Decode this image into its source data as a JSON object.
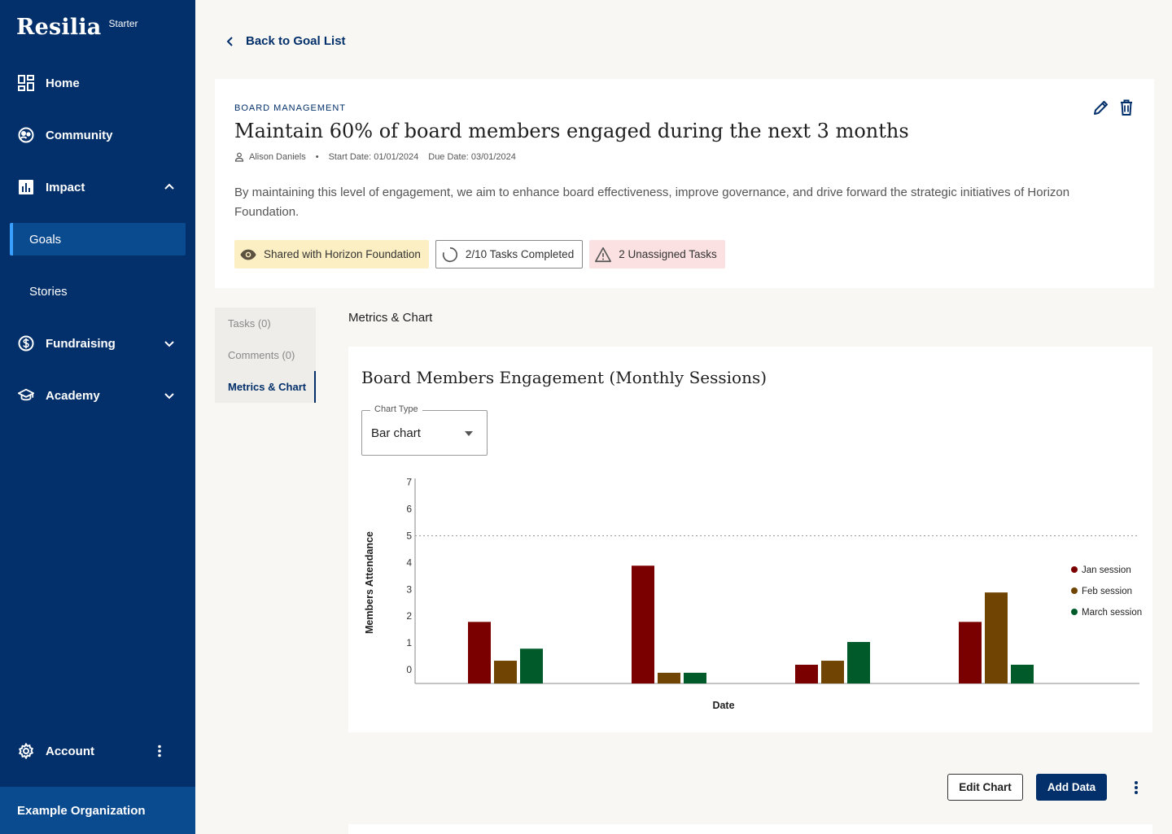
{
  "brand": {
    "name": "Resilia",
    "plan": "Starter"
  },
  "nav": {
    "home": "Home",
    "community": "Community",
    "impact": "Impact",
    "goals": "Goals",
    "stories": "Stories",
    "fundraising": "Fundraising",
    "academy": "Academy",
    "account": "Account",
    "organization": "Example Organization"
  },
  "back_label": "Back to Goal List",
  "goal": {
    "category": "BOARD MANAGEMENT",
    "title": "Maintain 60% of board members engaged during the next 3 months",
    "owner": "Alison Daniels",
    "start_date": "Start Date: 01/01/2024",
    "due_date": "Due Date: 03/01/2024",
    "description": "By maintaining this level of engagement, we aim to enhance board effectiveness, improve governance, and drive forward the strategic initiatives of Horizon Foundation.",
    "badges": {
      "shared": "Shared with Horizon Foundation",
      "tasks": "2/10 Tasks Completed",
      "unassigned": "2 Unassigned Tasks"
    }
  },
  "tabs": [
    "Tasks (0)",
    "Comments (0)",
    "Metrics & Chart"
  ],
  "section_title": "Metrics & Chart",
  "chart_card": {
    "title": "Board Members Engagement (Monthly Sessions)",
    "select_label": "Chart Type",
    "select_value": "Bar chart"
  },
  "buttons": {
    "edit_chart": "Edit Chart",
    "add_data": "Add Data"
  },
  "colors": {
    "jan": "#7a0000",
    "feb": "#704504",
    "march": "#005a2a",
    "navy": "#03306a"
  },
  "chart_data": {
    "type": "bar",
    "title": "",
    "xlabel": "Date",
    "ylabel": "Members Attendance",
    "ylim": [
      0,
      7
    ],
    "yticks": [
      0,
      1,
      2,
      3,
      4,
      5,
      6,
      7
    ],
    "target_line": 5,
    "categories": [
      "",
      "",
      "",
      ""
    ],
    "series": [
      {
        "name": "Jan session",
        "color": "#7a0000",
        "values": [
          2.3,
          4.4,
          0.7,
          2.3
        ]
      },
      {
        "name": "Feb session",
        "color": "#704504",
        "values": [
          0.85,
          0.4,
          0.85,
          3.4
        ]
      },
      {
        "name": "March session",
        "color": "#005a2a",
        "values": [
          1.3,
          0.4,
          1.55,
          0.7
        ]
      }
    ],
    "legend": "right",
    "grid": false
  }
}
